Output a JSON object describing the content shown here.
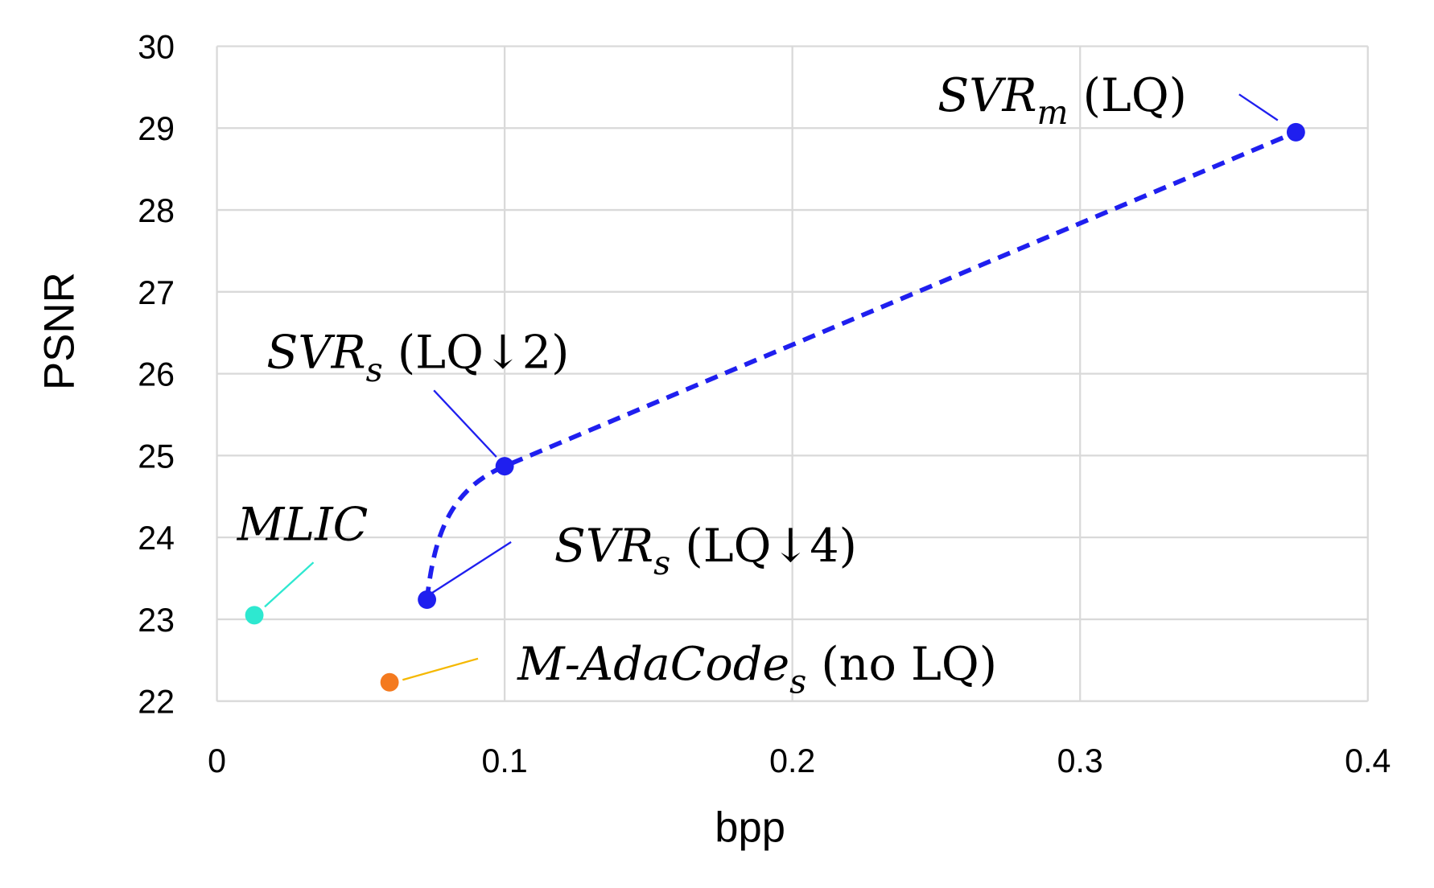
{
  "chart_data": {
    "type": "scatter",
    "title": "",
    "xlabel": "bpp",
    "ylabel": "PSNR",
    "xlim": [
      0,
      0.4
    ],
    "ylim": [
      22,
      30
    ],
    "xticks": [
      "0",
      "0.1",
      "0.2",
      "0.3",
      "0.4"
    ],
    "yticks": [
      "22",
      "23",
      "24",
      "25",
      "26",
      "27",
      "28",
      "29",
      "30"
    ],
    "grid": true,
    "legend": "none",
    "points": [
      {
        "name": "SVR_m (LQ)",
        "label_main": "SVR",
        "label_sub": "m",
        "label_tail": " (LQ)",
        "x": 0.375,
        "y": 28.95,
        "color": "#1f1fef"
      },
      {
        "name": "SVR_s (LQ↓2)",
        "label_main": "SVR",
        "label_sub": "s",
        "label_tail": " (LQ↓2)",
        "x": 0.1,
        "y": 24.87,
        "color": "#1f1fef"
      },
      {
        "name": "SVR_s (LQ↓4)",
        "label_main": "SVR",
        "label_sub": "s",
        "label_tail": " (LQ↓4)",
        "x": 0.073,
        "y": 23.24,
        "color": "#1f1fef"
      },
      {
        "name": "MLIC",
        "label_main": "MLIC",
        "label_sub": "",
        "label_tail": "",
        "x": 0.013,
        "y": 23.05,
        "color": "#2ee8d0"
      },
      {
        "name": "M-AdaCode_s (no LQ)",
        "label_main": "M-AdaCode",
        "label_sub": "s",
        "label_tail": " (no LQ)",
        "x": 0.06,
        "y": 22.23,
        "color": "#f47a1f"
      }
    ],
    "series": [
      {
        "style": "dashed",
        "color": "#1f1fef",
        "x": [
          0.073,
          0.1,
          0.375
        ],
        "y": [
          23.24,
          24.87,
          28.95
        ]
      }
    ]
  }
}
